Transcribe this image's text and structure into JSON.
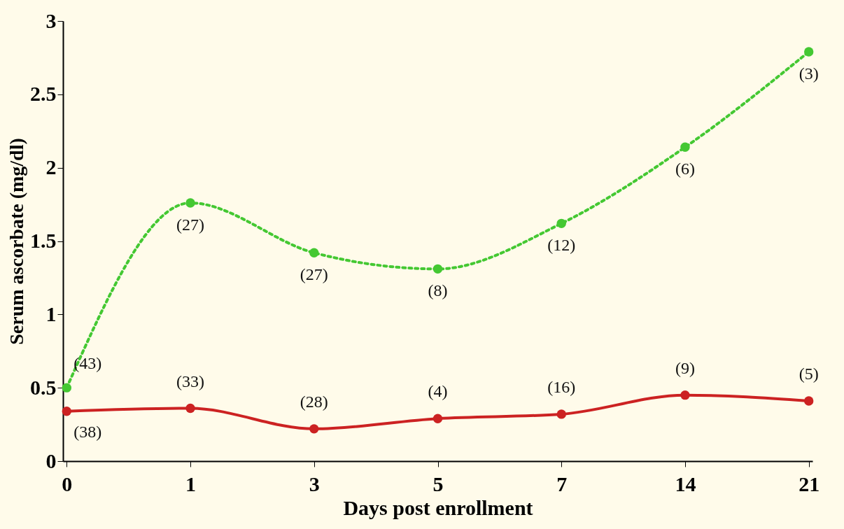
{
  "chart_data": {
    "type": "line",
    "xlabel": "Days post enrollment",
    "ylabel": "Serum ascorbate (mg/dl)",
    "categories": [
      "0",
      "1",
      "3",
      "5",
      "7",
      "14",
      "21"
    ],
    "series": [
      {
        "color": "#44c832",
        "line_style": "dotted",
        "values": [
          0.5,
          1.76,
          1.42,
          1.31,
          1.62,
          2.14,
          2.79
        ]
      },
      {
        "color": "#cc2222",
        "line_style": "solid",
        "values": [
          0.34,
          0.36,
          0.22,
          0.29,
          0.32,
          0.45,
          0.41
        ]
      }
    ],
    "annotations": [
      {
        "text": "(43)",
        "x": "0",
        "y": 0.5
      },
      {
        "text": "(27)",
        "x": "1",
        "y": 1.76
      },
      {
        "text": "(27)",
        "x": "3",
        "y": 1.42
      },
      {
        "text": "(8)",
        "x": "5",
        "y": 1.31
      },
      {
        "text": "(12)",
        "x": "7",
        "y": 1.62
      },
      {
        "text": "(6)",
        "x": "14",
        "y": 2.14
      },
      {
        "text": "(3)",
        "x": "21",
        "y": 2.79
      },
      {
        "text": "(38)",
        "x": "0",
        "y": 0.34
      },
      {
        "text": "(33)",
        "x": "1",
        "y": 0.36
      },
      {
        "text": "(28)",
        "x": "3",
        "y": 0.22
      },
      {
        "text": "(4)",
        "x": "5",
        "y": 0.29
      },
      {
        "text": "(16)",
        "x": "7",
        "y": 0.32
      },
      {
        "text": "(9)",
        "x": "14",
        "y": 0.45
      },
      {
        "text": "(5)",
        "x": "21",
        "y": 0.41
      }
    ],
    "ylim": [
      0,
      3
    ],
    "yticks": [
      0,
      0.5,
      1,
      1.5,
      2,
      2.5,
      3
    ],
    "marker": "circle"
  }
}
